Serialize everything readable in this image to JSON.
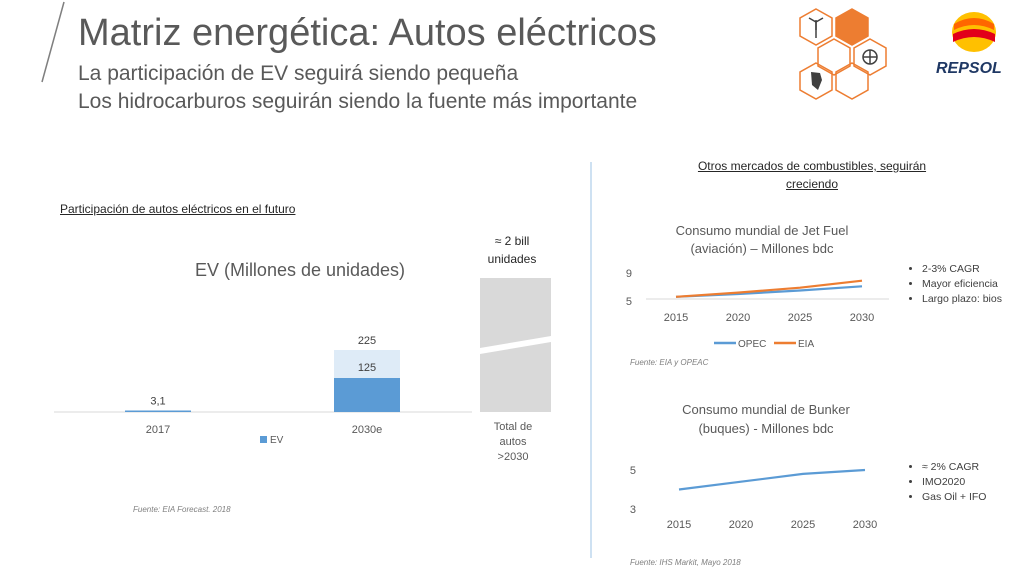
{
  "header": {
    "title": "Matriz energética: Autos eléctricos",
    "subtitle_1": "La participación de EV seguirá siendo pequeña",
    "subtitle_2": "Los hidrocarburos seguirán siendo la fuente más importante",
    "brand": "REPSOL"
  },
  "left": {
    "section_title": "Participación de autos eléctricos en el futuro",
    "bill_label_1": "≈ 2 bill",
    "bill_label_2": "unidades",
    "total_label_1": "Total de",
    "total_label_2": "autos",
    "total_label_3": ">2030",
    "source": "Fuente: EIA Forecast. 2018"
  },
  "right": {
    "section_title_1": "Otros mercados de combustibles, seguirán",
    "section_title_2": "creciendo",
    "jet_bullets": [
      "2-3% CAGR",
      "Mayor eficiencia",
      "Largo plazo: bios"
    ],
    "jet_source": "Fuente: EIA y OPEAC",
    "bunker_bullets": [
      "≈ 2% CAGR",
      "IMO2020",
      "Gas Oil + IFO"
    ],
    "bunker_source": "Fuente: IHS Markit, Mayo 2018"
  },
  "colors": {
    "ev": "#5b9bd5",
    "ev_light": "#deebf7",
    "opec": "#5b9bd5",
    "eia": "#ed7d31",
    "total_bar": "#d9d9d9",
    "hex_fill": "#ed7d31",
    "hex_stroke": "#ed7d31"
  },
  "chart_data": [
    {
      "type": "bar",
      "title": "EV (Millones de unidades)",
      "categories": [
        "2017",
        "2030e"
      ],
      "series": [
        {
          "name": "EV",
          "values": [
            3.1,
            125
          ]
        }
      ],
      "stacked_total_2030e": 225,
      "data_labels": [
        "3,1",
        "125",
        "225"
      ],
      "legend": "bottom"
    },
    {
      "type": "line",
      "title_1": "Consumo mundial de Jet Fuel",
      "title_2": "(aviación) – Millones bdc",
      "x": [
        "2015",
        "2020",
        "2025",
        "2030"
      ],
      "yticks": [
        "5",
        "9"
      ],
      "ylim": [
        5,
        9
      ],
      "series": [
        {
          "name": "OPEC",
          "values": [
            5.6,
            6.0,
            6.5,
            7.1
          ]
        },
        {
          "name": "EIA",
          "values": [
            5.6,
            6.2,
            6.9,
            7.9
          ]
        }
      ],
      "legend": "bottom"
    },
    {
      "type": "line",
      "title_1": "Consumo mundial de Bunker",
      "title_2": "(buques) - Millones bdc",
      "x": [
        "2015",
        "2020",
        "2025",
        "2030"
      ],
      "yticks": [
        "3",
        "5"
      ],
      "ylim": [
        3,
        5
      ],
      "series": [
        {
          "values": [
            4.0,
            4.4,
            4.8,
            5.0
          ]
        }
      ]
    }
  ]
}
